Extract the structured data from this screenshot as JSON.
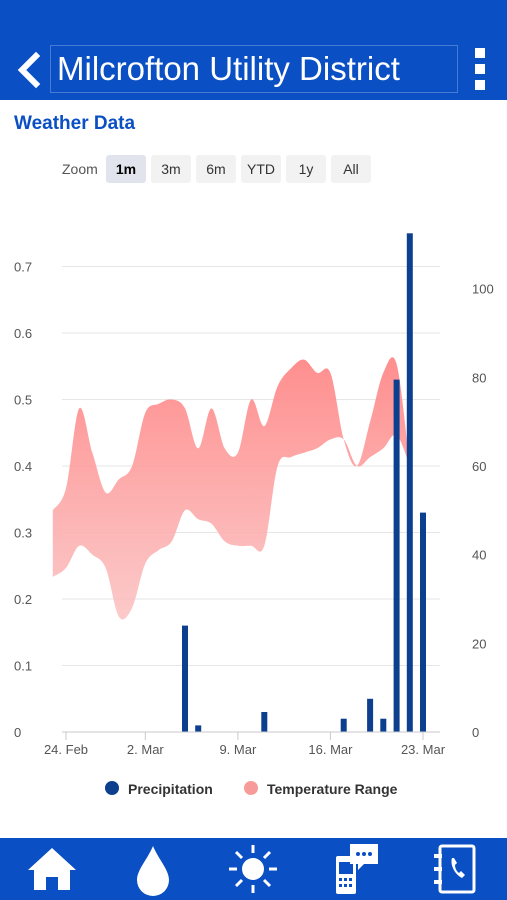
{
  "header": {
    "title": "Milcrofton Utility District"
  },
  "section_title": "Weather Data",
  "zoom": {
    "label": "Zoom",
    "options": [
      "1m",
      "3m",
      "6m",
      "YTD",
      "1y",
      "All"
    ],
    "active": "1m"
  },
  "legend": {
    "precipitation": "Precipitation",
    "temperature": "Temperature Range"
  },
  "nav": [
    "home-icon",
    "water-drop-icon",
    "sun-icon",
    "phone-chat-icon",
    "contact-phone-icon"
  ],
  "colors": {
    "brand": "#0a4fc4",
    "precipitation": "#0d3f8f",
    "temperature": "#f79a9a"
  },
  "chart_data": {
    "type": "bar",
    "x_ticks": [
      "24. Feb",
      "2. Mar",
      "9. Mar",
      "16. Mar",
      "23. Mar"
    ],
    "y_left_ticks": [
      "0",
      "0.1",
      "0.2",
      "0.3",
      "0.4",
      "0.5",
      "0.6",
      "0.7"
    ],
    "y_right_ticks": [
      "0",
      "20",
      "40",
      "60",
      "80",
      "100"
    ],
    "y_left_range": [
      0,
      0.8
    ],
    "y_right_range": [
      0,
      120
    ],
    "series": [
      {
        "name": "Precipitation",
        "type": "column",
        "x": [
          "2025-03-05",
          "2025-03-06",
          "2025-03-11",
          "2025-03-17",
          "2025-03-19",
          "2025-03-20",
          "2025-03-21",
          "2025-03-22",
          "2025-03-23"
        ],
        "values": [
          0.16,
          0.01,
          0.03,
          0.02,
          0.05,
          0.02,
          0.53,
          0.75,
          0.33
        ]
      },
      {
        "name": "Temperature Range",
        "type": "arearange",
        "x": [
          "2025-02-23",
          "2025-02-24",
          "2025-02-25",
          "2025-02-26",
          "2025-02-27",
          "2025-02-28",
          "2025-03-01",
          "2025-03-02",
          "2025-03-03",
          "2025-03-04",
          "2025-03-05",
          "2025-03-06",
          "2025-03-07",
          "2025-03-08",
          "2025-03-09",
          "2025-03-10",
          "2025-03-11",
          "2025-03-12",
          "2025-03-13",
          "2025-03-14",
          "2025-03-15",
          "2025-03-16",
          "2025-03-17",
          "2025-03-18",
          "2025-03-19",
          "2025-03-20",
          "2025-03-21",
          "2025-03-22"
        ],
        "low": [
          35,
          37,
          42,
          40,
          37,
          26,
          28,
          38,
          41,
          43,
          50,
          48,
          47,
          43,
          42,
          42,
          42,
          60,
          62,
          63,
          64,
          66,
          66,
          60,
          62,
          64,
          67,
          60
        ],
        "high": [
          50,
          55,
          73,
          63,
          54,
          57,
          60,
          72,
          74,
          75,
          73,
          64,
          73,
          64,
          63,
          75,
          69,
          78,
          82,
          84,
          81,
          81,
          66,
          60,
          70,
          81,
          83,
          60
        ]
      }
    ],
    "legend_position": "bottom"
  }
}
